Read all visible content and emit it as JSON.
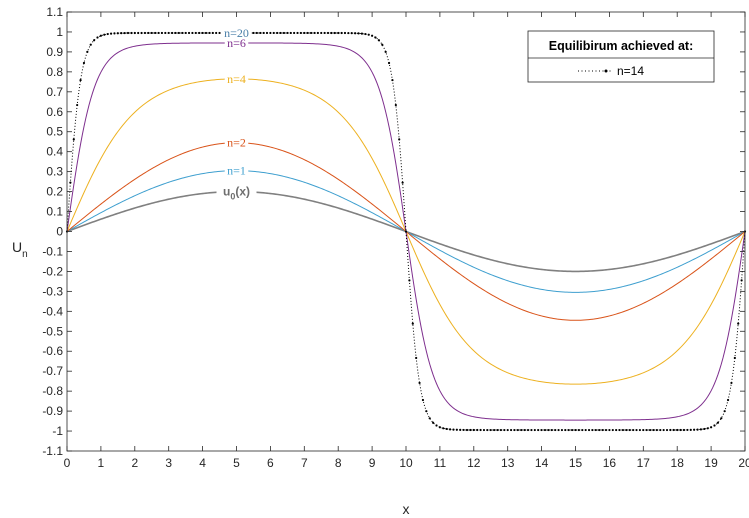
{
  "chart_data": {
    "type": "line",
    "title": "",
    "xlabel": "x",
    "ylabel": "U",
    "ylabel_sub": "n",
    "xlim": [
      0,
      20
    ],
    "ylim": [
      -1.1,
      1.1
    ],
    "x_ticks": [
      "0",
      "1",
      "2",
      "3",
      "4",
      "5",
      "6",
      "7",
      "8",
      "9",
      "10",
      "11",
      "12",
      "13",
      "14",
      "15",
      "16",
      "17",
      "18",
      "19",
      "20"
    ],
    "y_ticks": [
      "1.1",
      "1",
      "0.9",
      "0.8",
      "0.7",
      "0.6",
      "0.5",
      "0.4",
      "0.3",
      "0.2",
      "0.1",
      "0",
      "-0.1",
      "-0.2",
      "-0.3",
      "-0.4",
      "-0.5",
      "-0.6",
      "-0.7",
      "-0.8",
      "-0.9",
      "-1",
      "-1.1"
    ],
    "grid": false,
    "legend": {
      "title": "Equilibirum achieved at:",
      "entries": [
        "n=14"
      ],
      "placement": "top-right"
    },
    "series": [
      {
        "name": "u0(x)",
        "label": "u",
        "label_sub": "0",
        "label_suffix": "(x)",
        "color": "#808080",
        "amplitude": 0.2,
        "sharpness": 0
      },
      {
        "name": "n=1",
        "label": "n=1",
        "color": "#3e9fcf",
        "amplitude": 0.305,
        "sharpness": 0
      },
      {
        "name": "n=2",
        "label": "n=2",
        "color": "#d95319",
        "amplitude": 0.445,
        "sharpness": 0
      },
      {
        "name": "n=4",
        "label": "n=4",
        "color": "#edb120",
        "amplitude": 0.765,
        "sharpness": 1.5
      },
      {
        "name": "n=6",
        "label": "n=6",
        "color": "#7e2f8e",
        "amplitude": 0.945,
        "sharpness": 4
      },
      {
        "name": "n=20",
        "label": "n=20",
        "color": "#000000",
        "amplitude": 0.995,
        "sharpness": 8,
        "dotted": true,
        "label_color": "#4a7fa8"
      }
    ],
    "annotation_x": 5
  }
}
